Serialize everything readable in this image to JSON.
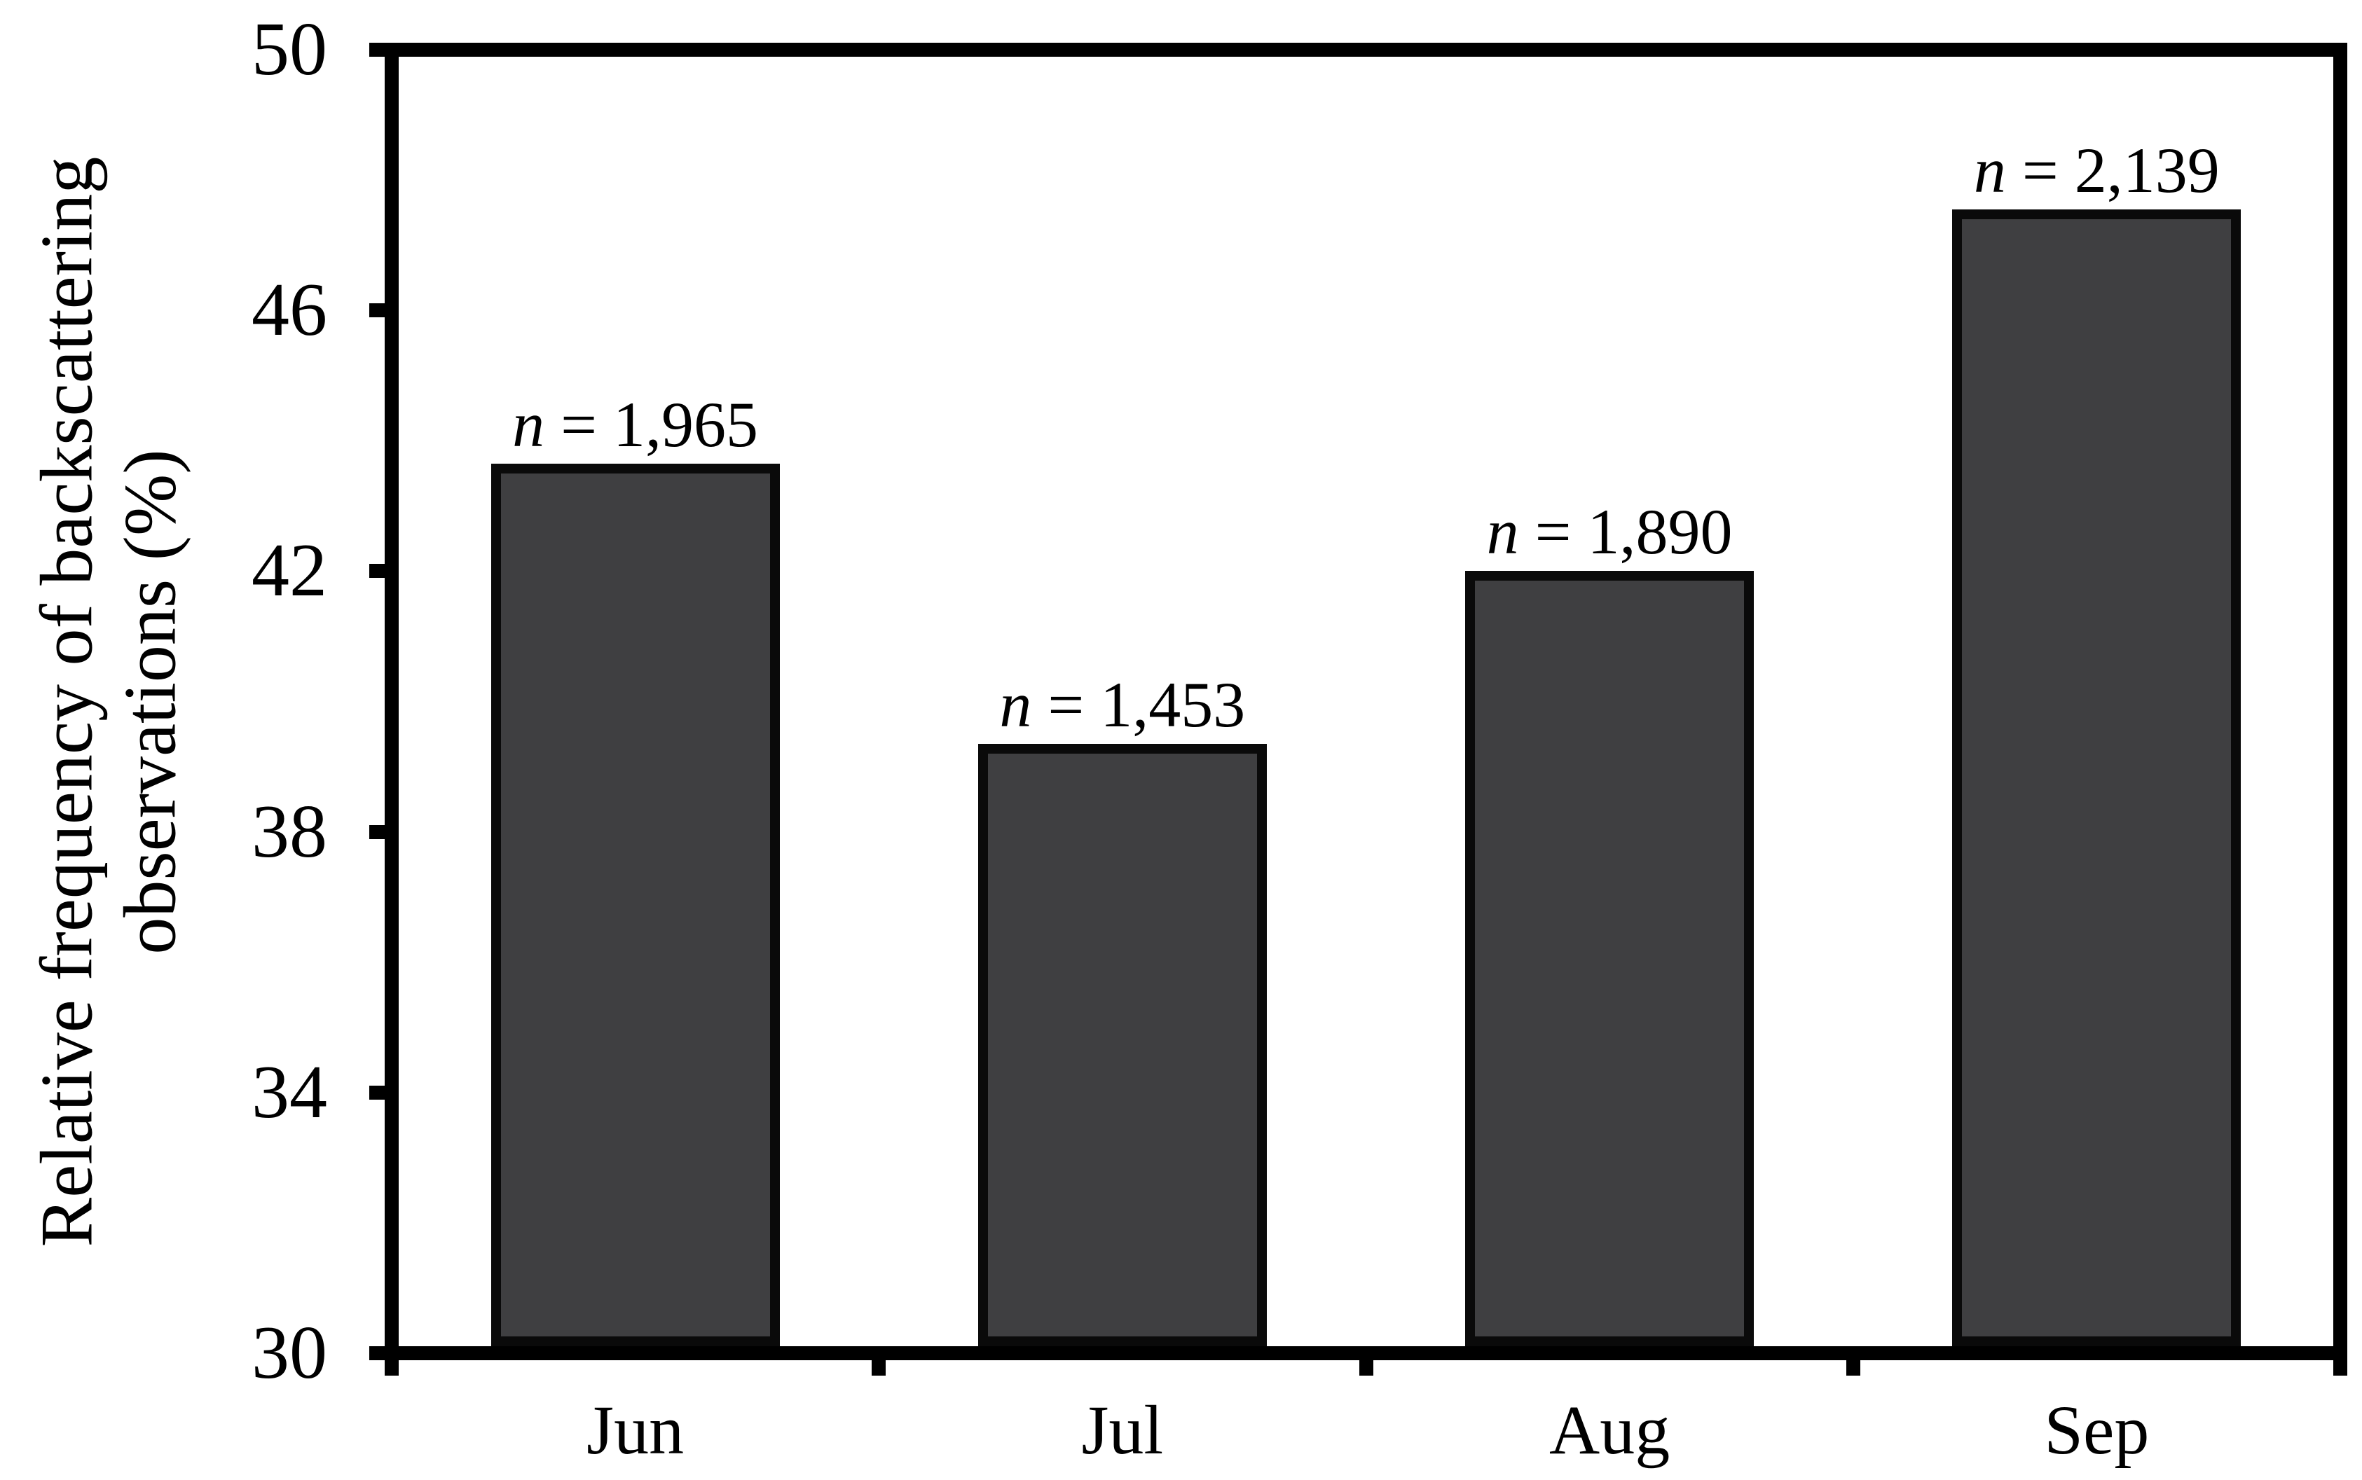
{
  "figure": {
    "background_color": "#ffffff",
    "text_color": "#000000"
  },
  "chart_data": {
    "type": "bar",
    "title": "",
    "xlabel": "",
    "ylabel_lines": [
      "Relative frequency of backscattering",
      "observations (%)"
    ],
    "categories": [
      "Jun",
      "Jul",
      "Aug",
      "Sep"
    ],
    "values": [
      43.65,
      39.35,
      42.0,
      47.55
    ],
    "annotations": [
      "n = 1,965",
      "n = 1,453",
      "n = 1,890",
      "n = 2,139"
    ],
    "ylim": [
      30,
      50
    ],
    "yticks": [
      30,
      34,
      38,
      42,
      46,
      50
    ],
    "grid": "off",
    "legend": "none",
    "bar_color": "#3f3f41",
    "bar_edge_color": "#0a0a0a",
    "axis_color": "#000000"
  }
}
